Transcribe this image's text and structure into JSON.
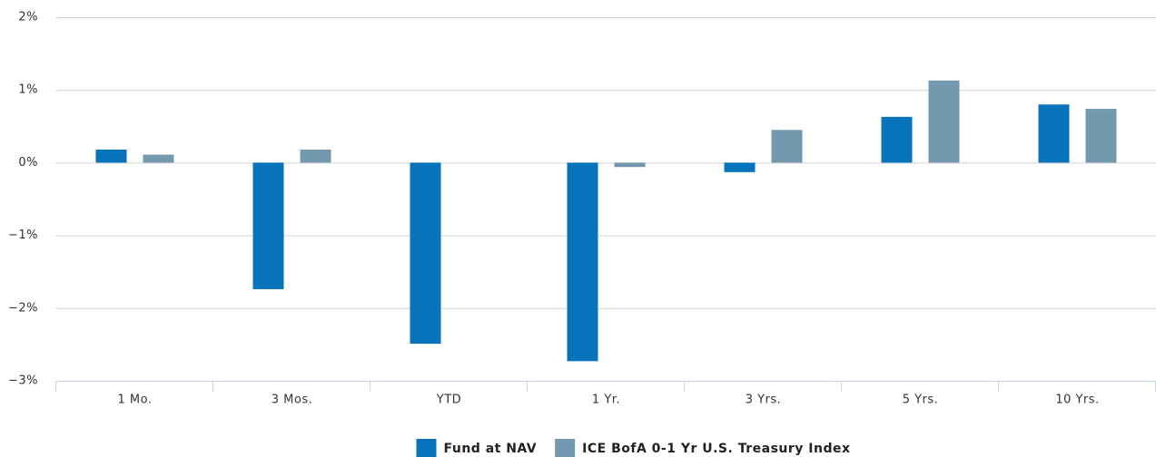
{
  "chart_data": {
    "type": "bar",
    "categories": [
      "1 Mo.",
      "3 Mos.",
      "YTD",
      "1 Yr.",
      "3 Yrs.",
      "5 Yrs.",
      "10 Yrs."
    ],
    "series": [
      {
        "name": "Fund at NAV",
        "color": "#0673bb",
        "values": [
          0.18,
          -1.74,
          -2.49,
          -2.73,
          -0.13,
          0.63,
          0.8
        ]
      },
      {
        "name": "ICE BofA 0-1 Yr U.S. Treasury Index",
        "color": "#7399ae",
        "values": [
          0.11,
          0.18,
          0.0,
          -0.06,
          0.45,
          1.13,
          0.74
        ]
      }
    ],
    "ylim": [
      -3,
      2
    ],
    "yticks": [
      {
        "value": -3,
        "label": "−3%"
      },
      {
        "value": -2,
        "label": "−2%"
      },
      {
        "value": -1,
        "label": "−1%"
      },
      {
        "value": 0,
        "label": "0%"
      },
      {
        "value": 1,
        "label": "1%"
      },
      {
        "value": 2,
        "label": "2%"
      }
    ],
    "grid": true,
    "legend": "bottom"
  }
}
